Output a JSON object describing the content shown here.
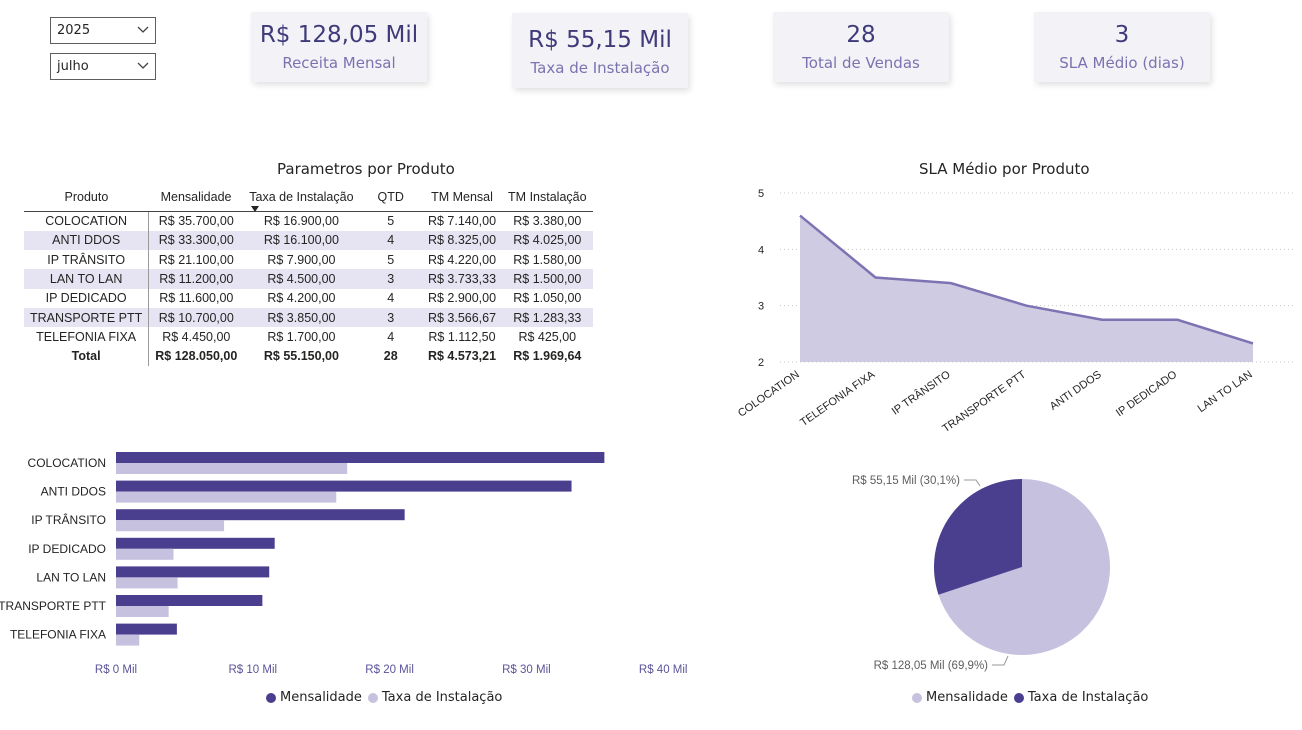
{
  "filters": {
    "year": "2025",
    "month": "julho"
  },
  "cards": [
    {
      "value": "R$ 128,05 Mil",
      "label": "Receita Mensal"
    },
    {
      "value": "R$ 55,15 Mil",
      "label": "Taxa de Instalação"
    },
    {
      "value": "28",
      "label": "Total de Vendas"
    },
    {
      "value": "3",
      "label": "SLA Médio (dias)"
    }
  ],
  "colors": {
    "dark": "#4a3f8f",
    "light": "#c5c1de",
    "area": "#cfcbe3",
    "line": "#7d73b3"
  },
  "table": {
    "title": "Parametros por Produto",
    "headers": [
      "Produto",
      "Mensalidade",
      "Taxa de Instalação",
      "QTD",
      "TM Mensal",
      "TM Instalação"
    ],
    "rows": [
      [
        "COLOCATION",
        "R$ 35.700,00",
        "R$ 16.900,00",
        "5",
        "R$ 7.140,00",
        "R$ 3.380,00"
      ],
      [
        "ANTI DDOS",
        "R$ 33.300,00",
        "R$ 16.100,00",
        "4",
        "R$ 8.325,00",
        "R$ 4.025,00"
      ],
      [
        "IP TRÂNSITO",
        "R$ 21.100,00",
        "R$ 7.900,00",
        "5",
        "R$ 4.220,00",
        "R$ 1.580,00"
      ],
      [
        "LAN TO LAN",
        "R$ 11.200,00",
        "R$ 4.500,00",
        "3",
        "R$ 3.733,33",
        "R$ 1.500,00"
      ],
      [
        "IP DEDICADO",
        "R$ 11.600,00",
        "R$ 4.200,00",
        "4",
        "R$ 2.900,00",
        "R$ 1.050,00"
      ],
      [
        "TRANSPORTE PTT",
        "R$ 10.700,00",
        "R$ 3.850,00",
        "3",
        "R$ 3.566,67",
        "R$ 1.283,33"
      ],
      [
        "TELEFONIA FIXA",
        "R$ 4.450,00",
        "R$ 1.700,00",
        "4",
        "R$ 1.112,50",
        "R$ 425,00"
      ]
    ],
    "total": [
      "Total",
      "R$ 128.050,00",
      "R$ 55.150,00",
      "28",
      "R$ 4.573,21",
      "R$ 1.969,64"
    ]
  },
  "chart_data": [
    {
      "type": "area",
      "title": "SLA Médio por Produto",
      "categories": [
        "COLOCATION",
        "TELEFONIA FIXA",
        "IP TRÂNSITO",
        "TRANSPORTE PTT",
        "ANTI DDOS",
        "IP DEDICADO",
        "LAN TO LAN"
      ],
      "values": [
        4.6,
        3.5,
        3.4,
        3.0,
        2.75,
        2.75,
        2.33
      ],
      "ylim": [
        2,
        5
      ],
      "yticks": [
        "2",
        "3",
        "4",
        "5"
      ]
    },
    {
      "type": "bar",
      "orientation": "horizontal",
      "categories": [
        "COLOCATION",
        "ANTI DDOS",
        "IP TRÂNSITO",
        "IP DEDICADO",
        "LAN TO LAN",
        "TRANSPORTE PTT",
        "TELEFONIA FIXA"
      ],
      "series": [
        {
          "name": "Mensalidade",
          "values": [
            35700,
            33300,
            21100,
            11600,
            11200,
            10700,
            4450
          ]
        },
        {
          "name": "Taxa de Instalação",
          "values": [
            16900,
            16100,
            7900,
            4200,
            4500,
            3850,
            1700
          ]
        }
      ],
      "xlim": [
        0,
        40000
      ],
      "xticks": [
        "R$ 0 Mil",
        "R$ 10 Mil",
        "R$ 20 Mil",
        "R$ 30 Mil",
        "R$ 40 Mil"
      ],
      "legend": [
        "Mensalidade",
        "Taxa de Instalação"
      ]
    },
    {
      "type": "pie",
      "slices": [
        {
          "name": "Mensalidade",
          "value": 128.05,
          "label": "R$ 128,05 Mil (69,9%)"
        },
        {
          "name": "Taxa de Instalação",
          "value": 55.15,
          "label": "R$ 55,15 Mil (30,1%)"
        }
      ],
      "legend": [
        "Mensalidade",
        "Taxa de Instalação"
      ]
    }
  ]
}
